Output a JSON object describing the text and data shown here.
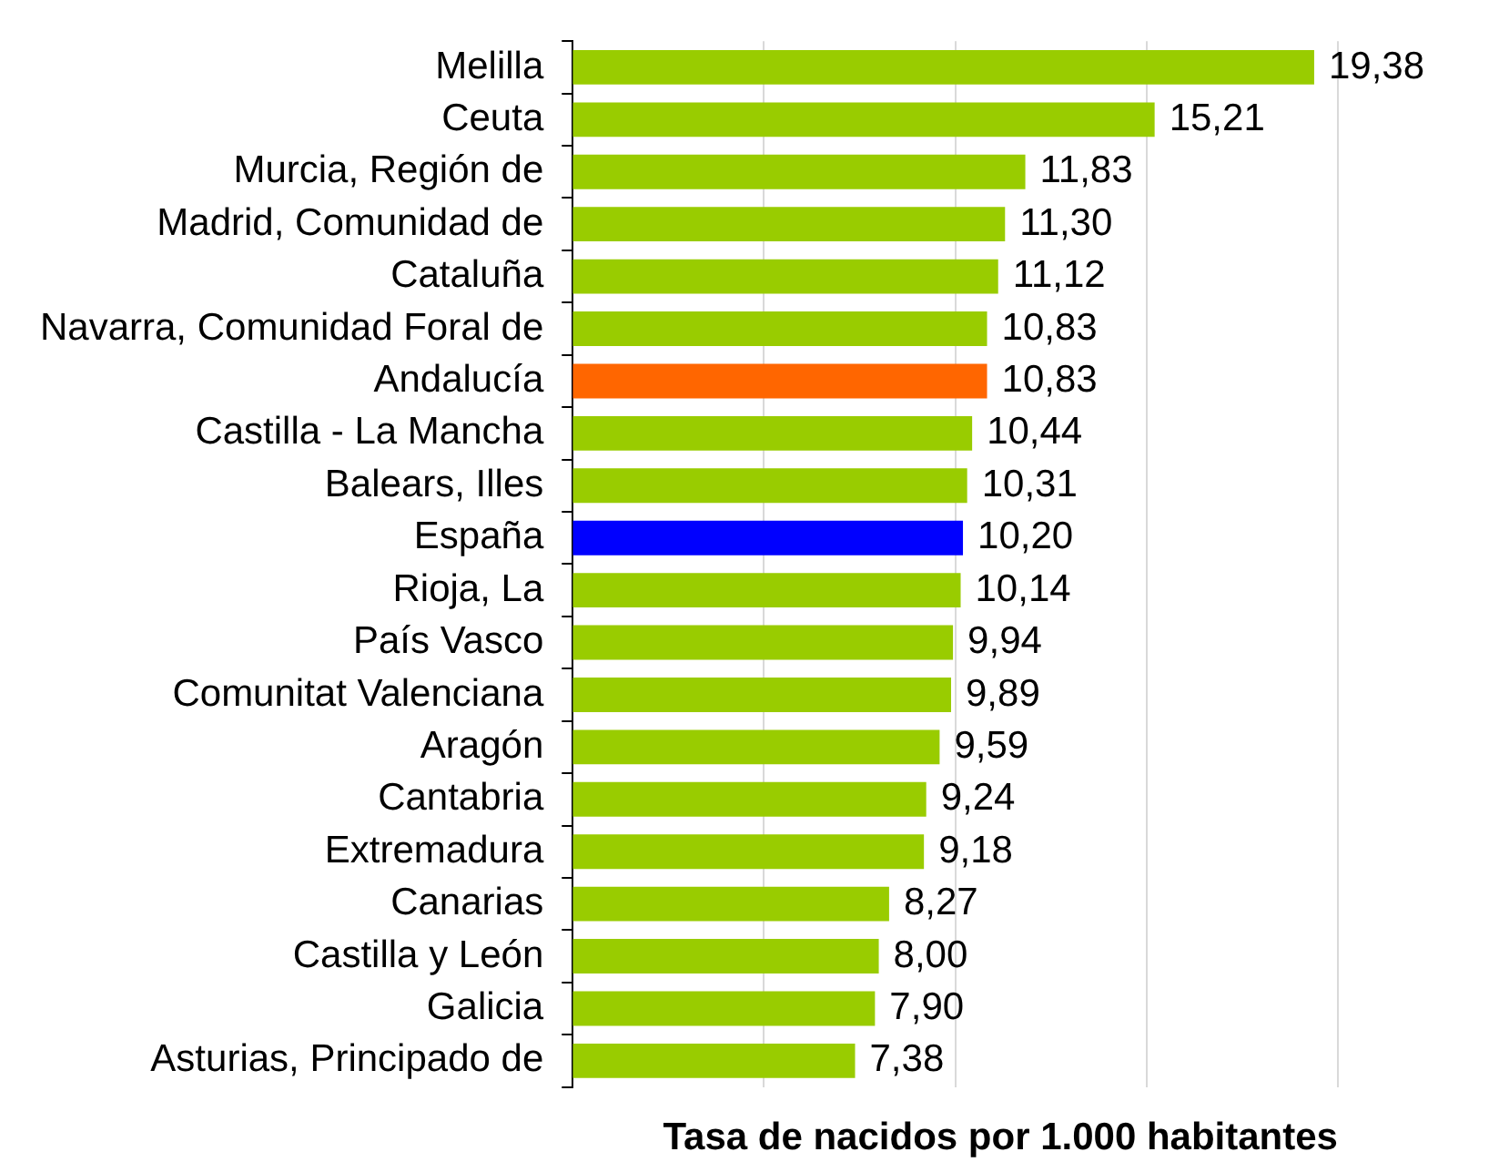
{
  "chart_data": {
    "type": "bar",
    "orientation": "horizontal",
    "categories": [
      "Melilla",
      "Ceuta",
      "Murcia, Región de",
      "Madrid, Comunidad de",
      "Cataluña",
      "Navarra, Comunidad Foral de",
      "Andalucía",
      "Castilla - La Mancha",
      "Balears, Illes",
      "España",
      "Rioja, La",
      "País Vasco",
      "Comunitat Valenciana",
      "Aragón",
      "Cantabria",
      "Extremadura",
      "Canarias",
      "Castilla y León",
      "Galicia",
      "Asturias, Principado de"
    ],
    "values": [
      19.38,
      15.21,
      11.83,
      11.3,
      11.12,
      10.83,
      10.83,
      10.44,
      10.31,
      10.2,
      10.14,
      9.94,
      9.89,
      9.59,
      9.24,
      9.18,
      8.27,
      8.0,
      7.9,
      7.38
    ],
    "value_labels": [
      "19,38",
      "15,21",
      "11,83",
      "11,30",
      "11,12",
      "10,83",
      "10,83",
      "10,44",
      "10,31",
      "10,20",
      "10,14",
      "9,94",
      "9,89",
      "9,59",
      "9,24",
      "9,18",
      "8,27",
      "8,00",
      "7,90",
      "7,38"
    ],
    "colors": [
      "#99cc00",
      "#99cc00",
      "#99cc00",
      "#99cc00",
      "#99cc00",
      "#99cc00",
      "#ff6600",
      "#99cc00",
      "#99cc00",
      "#0000ff",
      "#99cc00",
      "#99cc00",
      "#99cc00",
      "#99cc00",
      "#99cc00",
      "#99cc00",
      "#99cc00",
      "#99cc00",
      "#99cc00",
      "#99cc00"
    ],
    "xlim": [
      0,
      20
    ],
    "xticks": [
      {
        "value": 5,
        "label": null
      },
      {
        "value": 10,
        "label": null
      },
      {
        "value": 15,
        "label": null
      },
      {
        "value": 20,
        "label": null
      }
    ],
    "xlabel": "Tasa de nacidos por 1.000 habitantes",
    "grid": "x",
    "tick_labels": "y"
  }
}
